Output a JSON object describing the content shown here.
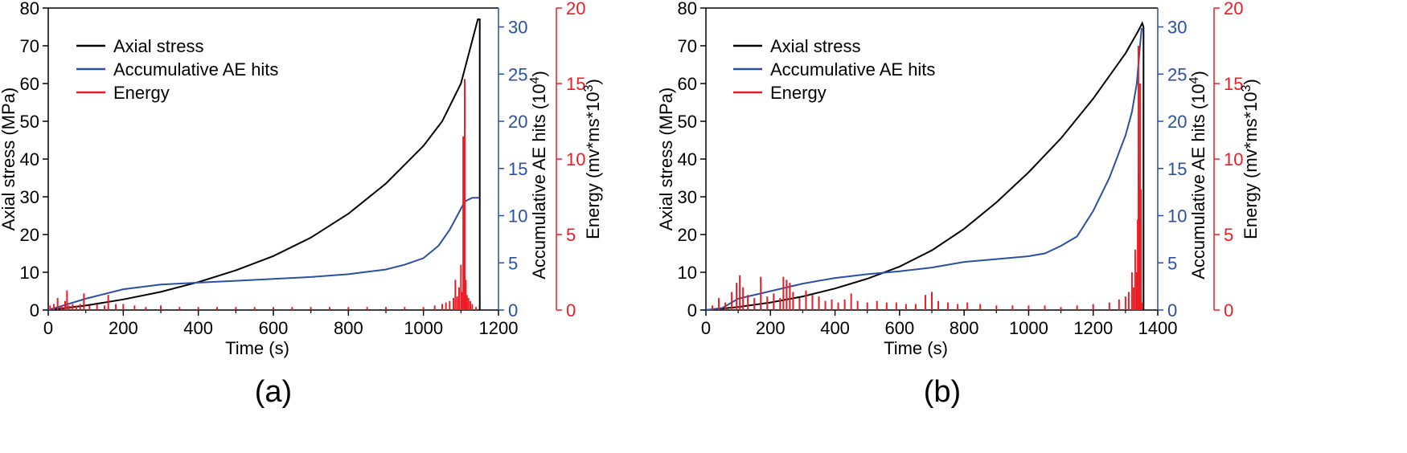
{
  "colors": {
    "stress": "#000000",
    "hits": "#2b4fa2",
    "energy": "#ee1c24",
    "axis": "#000000"
  },
  "legend": {
    "placement": "top-left",
    "entries": [
      "Axial stress",
      "Accumulative AE hits",
      "Energy"
    ]
  },
  "chart_data": [
    {
      "panel_label": "(a)",
      "type": "line",
      "xlabel": "Time (s)",
      "ylabel_left": "Axial stress (MPa)",
      "ylabel_right1": "Accumulative AE hits (10^4)",
      "ylabel_right2": "Energy (mv*ms*10^3)",
      "xlim": [
        0,
        1200
      ],
      "xticks": [
        0,
        200,
        400,
        600,
        800,
        1000,
        1200
      ],
      "ylim_left": [
        0,
        80
      ],
      "yticks_left": [
        0,
        10,
        20,
        30,
        40,
        50,
        60,
        70,
        80
      ],
      "ylim_right1": [
        0,
        32
      ],
      "yticks_right1": [
        0,
        5,
        10,
        15,
        20,
        25,
        30
      ],
      "ylim_right2": [
        0,
        20
      ],
      "yticks_right2": [
        0,
        5,
        10,
        15,
        20
      ],
      "grid": false,
      "series": [
        {
          "name": "Axial stress",
          "axis": "left",
          "x": [
            0,
            100,
            200,
            300,
            400,
            500,
            600,
            700,
            800,
            900,
            1000,
            1050,
            1100,
            1145,
            1150,
            1150
          ],
          "y": [
            0,
            1.2,
            2.8,
            4.8,
            7.4,
            10.5,
            14.3,
            19.2,
            25.5,
            33.5,
            43.5,
            50,
            60,
            77,
            77,
            0
          ]
        },
        {
          "name": "Accumulative AE hits",
          "axis": "right1",
          "x": [
            0,
            100,
            200,
            300,
            400,
            500,
            600,
            700,
            800,
            900,
            950,
            1000,
            1040,
            1070,
            1090,
            1110,
            1130,
            1150
          ],
          "y": [
            0,
            1.2,
            2.2,
            2.7,
            2.9,
            3.1,
            3.3,
            3.5,
            3.8,
            4.3,
            4.8,
            5.5,
            6.8,
            8.5,
            10,
            11.5,
            11.9,
            11.9
          ]
        },
        {
          "name": "Energy",
          "axis": "right2",
          "type": "bar",
          "x": [
            5,
            15,
            25,
            35,
            45,
            50,
            55,
            65,
            75,
            85,
            95,
            110,
            130,
            150,
            160,
            180,
            200,
            230,
            260,
            300,
            350,
            400,
            450,
            500,
            550,
            600,
            650,
            700,
            750,
            800,
            850,
            900,
            950,
            1000,
            1030,
            1050,
            1060,
            1070,
            1080,
            1085,
            1090,
            1095,
            1100,
            1103,
            1106,
            1110,
            1113,
            1116,
            1120,
            1125,
            1130,
            1140
          ],
          "y": [
            0.3,
            0.4,
            0.8,
            0.3,
            0.6,
            1.3,
            0.3,
            0.4,
            0.3,
            0.4,
            1.1,
            0.3,
            0.4,
            0.3,
            1.0,
            0.4,
            0.4,
            0.3,
            0.2,
            0.3,
            0.2,
            0.2,
            0.2,
            0.2,
            0.2,
            0.2,
            0.2,
            0.2,
            0.2,
            0.2,
            0.2,
            0.2,
            0.2,
            0.2,
            0.3,
            0.4,
            0.5,
            0.6,
            0.8,
            2.0,
            0.9,
            1.5,
            3.0,
            1.2,
            11.5,
            15.3,
            2.0,
            1.0,
            0.8,
            0.6,
            0.4,
            0.2
          ]
        }
      ]
    },
    {
      "panel_label": "(b)",
      "type": "line",
      "xlabel": "Time (s)",
      "ylabel_left": "Axial stress (MPa)",
      "ylabel_right1": "Accumulative AE hits (10^4)",
      "ylabel_right2": "Energy (mv*ms*10^3)",
      "xlim": [
        0,
        1400
      ],
      "xticks": [
        0,
        200,
        400,
        600,
        800,
        1000,
        1200,
        1400
      ],
      "ylim_left": [
        0,
        80
      ],
      "yticks_left": [
        0,
        10,
        20,
        30,
        40,
        50,
        60,
        70,
        80
      ],
      "ylim_right1": [
        0,
        32
      ],
      "yticks_right1": [
        0,
        5,
        10,
        15,
        20,
        25,
        30
      ],
      "ylim_right2": [
        0,
        20
      ],
      "yticks_right2": [
        0,
        5,
        10,
        15,
        20
      ],
      "grid": false,
      "series": [
        {
          "name": "Axial stress",
          "axis": "left",
          "x": [
            0,
            100,
            200,
            300,
            400,
            500,
            600,
            700,
            800,
            900,
            1000,
            1100,
            1200,
            1300,
            1340,
            1352,
            1356,
            1356
          ],
          "y": [
            0,
            0.8,
            2.0,
            3.6,
            5.7,
            8.3,
            11.5,
            15.8,
            21.5,
            28.5,
            36.5,
            45.5,
            56,
            68,
            74,
            76,
            75,
            0
          ]
        },
        {
          "name": "Accumulative AE hits",
          "axis": "right1",
          "x": [
            0,
            50,
            100,
            200,
            300,
            400,
            500,
            600,
            700,
            800,
            900,
            1000,
            1050,
            1100,
            1150,
            1200,
            1250,
            1300,
            1320,
            1335,
            1345,
            1350,
            1356
          ],
          "y": [
            0,
            0.2,
            1.2,
            2.0,
            2.8,
            3.4,
            3.8,
            4.1,
            4.5,
            5.1,
            5.4,
            5.7,
            6.0,
            6.8,
            7.8,
            10.5,
            14,
            18.5,
            21,
            24,
            28,
            29.8,
            29.8
          ]
        },
        {
          "name": "Energy",
          "axis": "right2",
          "type": "bar",
          "x": [
            20,
            40,
            60,
            80,
            95,
            105,
            115,
            130,
            150,
            170,
            190,
            210,
            230,
            240,
            250,
            260,
            270,
            290,
            310,
            330,
            350,
            370,
            390,
            410,
            430,
            450,
            470,
            500,
            530,
            560,
            590,
            620,
            650,
            680,
            700,
            720,
            750,
            780,
            810,
            850,
            900,
            950,
            1000,
            1050,
            1100,
            1150,
            1200,
            1250,
            1280,
            1300,
            1310,
            1320,
            1325,
            1330,
            1335,
            1338,
            1340,
            1342,
            1345,
            1348,
            1350
          ],
          "y": [
            0.3,
            0.8,
            0.5,
            1.2,
            1.8,
            2.3,
            1.5,
            1.0,
            0.8,
            2.2,
            0.9,
            1.1,
            0.8,
            2.2,
            2.0,
            1.8,
            1.2,
            0.8,
            1.3,
            1.0,
            0.9,
            0.6,
            0.7,
            0.5,
            0.7,
            1.1,
            0.6,
            0.5,
            0.6,
            0.5,
            0.5,
            0.4,
            0.4,
            1.0,
            1.2,
            0.6,
            0.5,
            0.4,
            0.5,
            0.4,
            0.3,
            0.3,
            0.3,
            0.3,
            0.2,
            0.3,
            0.4,
            0.5,
            0.7,
            0.9,
            1.2,
            2.5,
            1.5,
            4.0,
            2.5,
            6.0,
            17.5,
            9.0,
            15.0,
            8.0,
            0.5
          ]
        }
      ]
    }
  ]
}
